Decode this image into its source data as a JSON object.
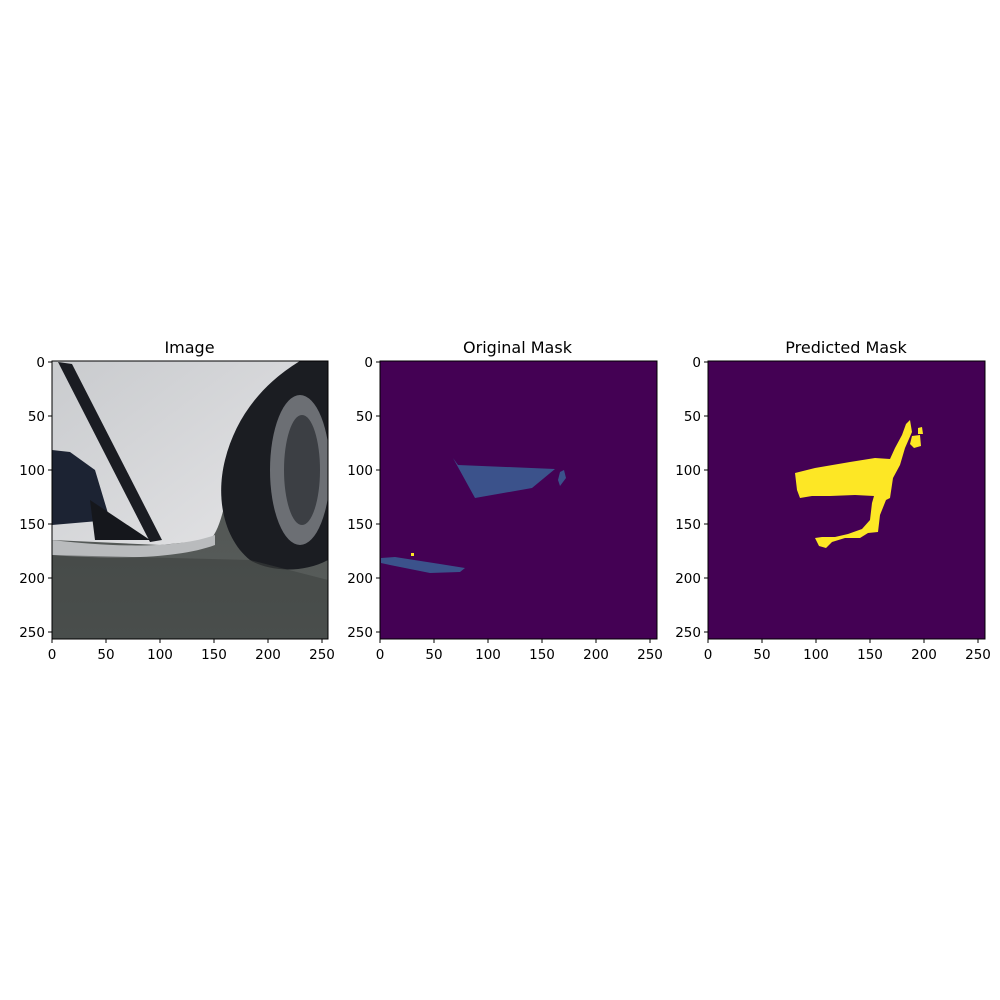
{
  "panels": [
    {
      "title": "Image",
      "x_ticks": [
        "0",
        "50",
        "100",
        "150",
        "200",
        "250"
      ],
      "y_ticks": [
        "0",
        "50",
        "100",
        "150",
        "200",
        "250"
      ]
    },
    {
      "title": "Original Mask",
      "x_ticks": [
        "0",
        "50",
        "100",
        "150",
        "200",
        "250"
      ],
      "y_ticks": [
        "0",
        "50",
        "100",
        "150",
        "200",
        "250"
      ]
    },
    {
      "title": "Predicted Mask",
      "x_ticks": [
        "0",
        "50",
        "100",
        "150",
        "200",
        "250"
      ],
      "y_ticks": [
        "0",
        "50",
        "100",
        "150",
        "200",
        "250"
      ]
    }
  ],
  "colors": {
    "mask_background": "#440154",
    "mask_class_blue": "#3b528b",
    "mask_class_yellow": "#fde725",
    "car_white": "#d9dadb",
    "tire_black": "#1b1d22",
    "ground_dark": "#3a3e3c"
  }
}
